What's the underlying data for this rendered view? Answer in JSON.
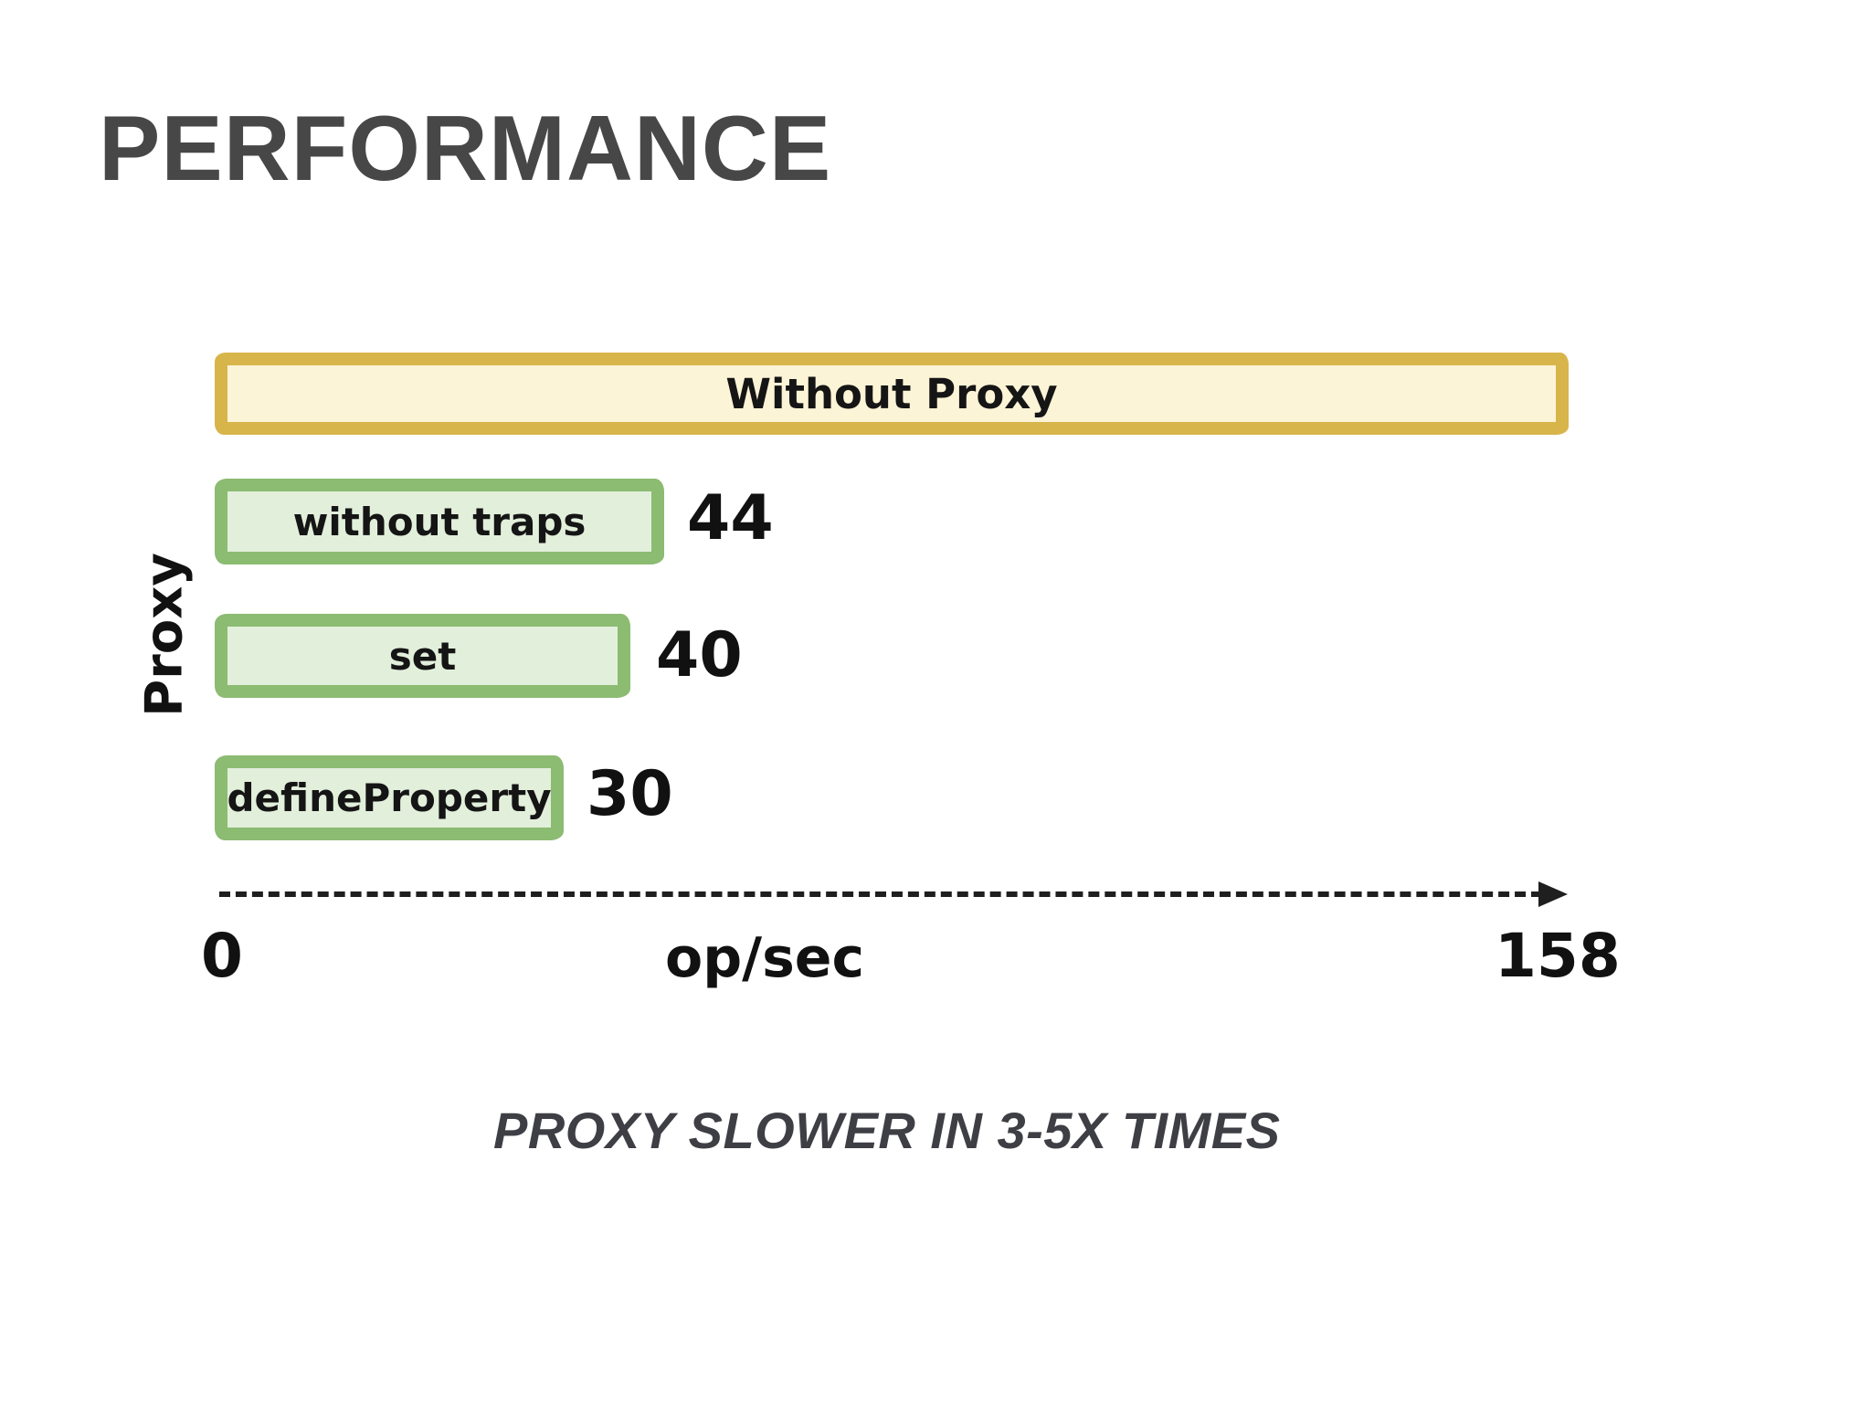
{
  "page": {
    "title": "PERFORMANCE",
    "caption": "PROXY SLOWER IN 3-5X TIMES"
  },
  "chart_data": {
    "type": "bar",
    "orientation": "horizontal",
    "group_label": "Proxy",
    "xlabel": "op/sec",
    "axis": {
      "min_label": "0",
      "max_label": "158",
      "xlim": [
        0,
        158
      ],
      "style": "dashed-arrow",
      "grid": false
    },
    "bars": [
      {
        "label": "Without Proxy",
        "value": 158,
        "value_label": "",
        "group": "",
        "style": "yellow"
      },
      {
        "label": "without traps",
        "value": 44,
        "value_label": "44",
        "group": "Proxy",
        "style": "green"
      },
      {
        "label": "set",
        "value": 40,
        "value_label": "40",
        "group": "Proxy",
        "style": "green"
      },
      {
        "label": "defineProperty",
        "value": 30,
        "value_label": "30",
        "group": "Proxy",
        "style": "green"
      }
    ],
    "colors": {
      "yellow_border": "#d8b54b",
      "yellow_fill": "#fcf4d6",
      "green_border": "#8cbb72",
      "green_fill": "#e2efdb",
      "text": "#111111",
      "title": "#474747",
      "caption": "#3e3e45"
    }
  }
}
